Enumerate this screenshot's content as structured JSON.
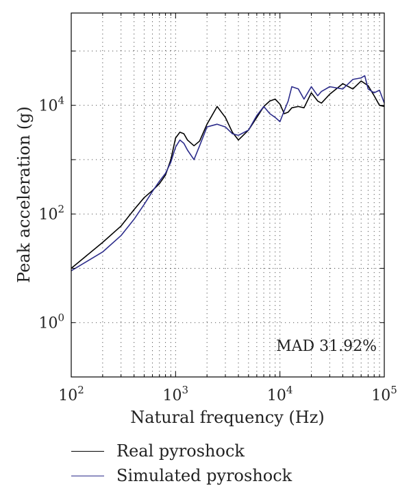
{
  "chart_data": {
    "type": "line",
    "xlabel": "Natural frequency (Hz)",
    "ylabel": "Peak acceleration (g)",
    "xscale": "log",
    "yscale": "log",
    "xlim": [
      100,
      100000
    ],
    "ylim": [
      0.1,
      500000
    ],
    "xticks": [
      {
        "value": 100,
        "base": "10",
        "exp": "2"
      },
      {
        "value": 1000,
        "base": "10",
        "exp": "3"
      },
      {
        "value": 10000,
        "base": "10",
        "exp": "4"
      },
      {
        "value": 100000,
        "base": "10",
        "exp": "5"
      }
    ],
    "yticks": [
      {
        "value": 1,
        "base": "10",
        "exp": "0"
      },
      {
        "value": 100,
        "base": "10",
        "exp": "2"
      },
      {
        "value": 10000,
        "base": "10",
        "exp": "4"
      }
    ],
    "grid": true,
    "annotation": "MAD 31.92%",
    "series": [
      {
        "name": "Real pyroshock",
        "color": "#000000",
        "x": [
          100,
          200,
          300,
          400,
          500,
          600,
          700,
          800,
          900,
          1000,
          1100,
          1200,
          1300,
          1500,
          1700,
          2000,
          2500,
          3000,
          3500,
          4000,
          5000,
          6000,
          7000,
          8000,
          9000,
          10000,
          11000,
          12000,
          13000,
          15000,
          17000,
          20000,
          23000,
          25000,
          30000,
          40000,
          50000,
          60000,
          70000,
          80000,
          90000,
          100000
        ],
        "y": [
          10,
          30,
          60,
          120,
          200,
          270,
          360,
          520,
          1000,
          2500,
          3200,
          3000,
          2300,
          1800,
          2200,
          4500,
          9500,
          6000,
          3200,
          2300,
          3500,
          6000,
          9500,
          12000,
          13000,
          10500,
          7000,
          7500,
          9000,
          9500,
          9000,
          17000,
          12000,
          11000,
          16000,
          25000,
          20000,
          28000,
          23000,
          15000,
          10000,
          9500
        ]
      },
      {
        "name": "Simulated pyroshock",
        "color": "#2b2b8a",
        "x": [
          100,
          200,
          300,
          400,
          500,
          600,
          700,
          800,
          900,
          1000,
          1100,
          1200,
          1300,
          1500,
          1700,
          2000,
          2500,
          3000,
          3500,
          4000,
          5000,
          6000,
          7000,
          8000,
          9000,
          10000,
          11000,
          12000,
          13000,
          15000,
          17000,
          20000,
          23000,
          25000,
          30000,
          40000,
          50000,
          60000,
          65000,
          70000,
          80000,
          90000,
          100000
        ],
        "y": [
          9,
          20,
          40,
          80,
          150,
          260,
          400,
          560,
          900,
          1700,
          2300,
          2000,
          1500,
          1000,
          1800,
          4000,
          4500,
          4000,
          3000,
          2800,
          3500,
          6500,
          9500,
          7000,
          6000,
          5000,
          8000,
          12000,
          22000,
          20000,
          13000,
          22000,
          15000,
          18000,
          22000,
          20000,
          30000,
          32000,
          35000,
          20000,
          17000,
          19000,
          11000
        ]
      }
    ]
  }
}
